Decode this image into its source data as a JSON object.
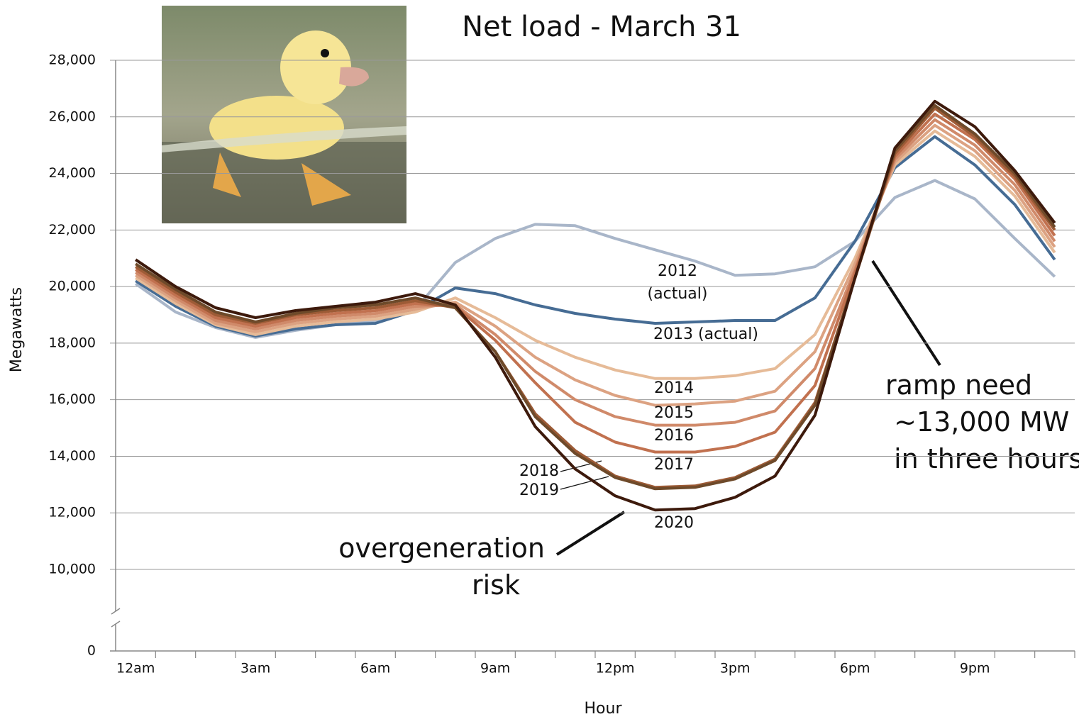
{
  "chart_data": {
    "type": "line",
    "title": "Net load - March 31",
    "x_label": "Hour",
    "y_label": "Megawatts",
    "categories": [
      "12am",
      null,
      null,
      "3am",
      null,
      null,
      "6am",
      null,
      null,
      "9am",
      null,
      null,
      "12pm",
      null,
      null,
      "3pm",
      null,
      null,
      "6pm",
      null,
      null,
      "9pm",
      null,
      null
    ],
    "ylim": [
      0,
      28000
    ],
    "axis_break": [
      0,
      10000
    ],
    "yticks": [
      0,
      {
        "value": 10000,
        "label": "10,000"
      },
      {
        "value": 12000,
        "label": "12,000"
      },
      {
        "value": 14000,
        "label": "14,000"
      },
      {
        "value": 16000,
        "label": "16,000"
      },
      {
        "value": 18000,
        "label": "18,000"
      },
      {
        "value": 20000,
        "label": "20,000"
      },
      {
        "value": 22000,
        "label": "22,000"
      },
      {
        "value": 24000,
        "label": "24,000"
      },
      {
        "value": 26000,
        "label": "26,000"
      },
      {
        "value": 28000,
        "label": "28,000"
      }
    ],
    "grid": true,
    "series": [
      {
        "name": "2012",
        "color": "#a9b6c9",
        "values": [
          20100,
          19100,
          18550,
          18200,
          18450,
          18650,
          18800,
          19200,
          20850,
          21700,
          22200,
          22150,
          21700,
          21300,
          20900,
          20400,
          20450,
          20700,
          21600,
          23150,
          23750,
          23100,
          21700,
          20350
        ]
      },
      {
        "name": "2013 (actual)",
        "color": "#466c94",
        "values": [
          20200,
          19300,
          18600,
          18250,
          18500,
          18650,
          18700,
          19150,
          19950,
          19750,
          19350,
          19050,
          18850,
          18700,
          18750,
          18800,
          18800,
          19600,
          21600,
          24200,
          25300,
          24300,
          22900,
          20950
        ]
      },
      {
        "name": "2014",
        "color": "#e6bb98",
        "values": [
          20300,
          19400,
          18650,
          18300,
          18600,
          18750,
          18850,
          19100,
          19600,
          18900,
          18100,
          17500,
          17050,
          16750,
          16750,
          16850,
          17100,
          18300,
          21000,
          24300,
          25500,
          24600,
          23200,
          21200
        ]
      },
      {
        "name": "2015",
        "color": "#dca282",
        "values": [
          20400,
          19500,
          18700,
          18400,
          18700,
          18850,
          18950,
          19200,
          19450,
          18600,
          17500,
          16700,
          16150,
          15800,
          15850,
          15950,
          16300,
          17700,
          20800,
          24400,
          25700,
          24800,
          23400,
          21400
        ]
      },
      {
        "name": "2016",
        "color": "#d08a6a",
        "values": [
          20500,
          19600,
          18800,
          18500,
          18800,
          18950,
          19050,
          19300,
          19350,
          18300,
          17000,
          16000,
          15400,
          15100,
          15100,
          15200,
          15600,
          17100,
          20600,
          24500,
          25900,
          25000,
          23600,
          21600
        ]
      },
      {
        "name": "2017",
        "color": "#c1714f",
        "values": [
          20600,
          19700,
          18900,
          18600,
          18900,
          19050,
          19150,
          19400,
          19300,
          18100,
          16600,
          15200,
          14500,
          14150,
          14150,
          14350,
          14850,
          16500,
          20500,
          24600,
          26100,
          25200,
          23800,
          21800
        ]
      },
      {
        "name": "2018",
        "color": "#9d5b36",
        "values": [
          20700,
          19800,
          19000,
          18700,
          19000,
          19150,
          19250,
          19500,
          19250,
          17700,
          15500,
          14200,
          13300,
          12900,
          12950,
          13250,
          13900,
          15900,
          20300,
          24700,
          26300,
          25300,
          23900,
          22000
        ]
      },
      {
        "name": "2019",
        "color": "#6e4a2a",
        "values": [
          20800,
          19900,
          19100,
          18750,
          19050,
          19250,
          19350,
          19600,
          19250,
          17700,
          15400,
          14100,
          13250,
          12850,
          12900,
          13200,
          13850,
          15800,
          20300,
          24800,
          26400,
          25400,
          24000,
          22100
        ]
      },
      {
        "name": "2020",
        "color": "#3d1a0c",
        "values": [
          20950,
          20000,
          19250,
          18900,
          19150,
          19300,
          19450,
          19750,
          19350,
          17500,
          15050,
          13550,
          12600,
          12100,
          12150,
          12550,
          13300,
          15450,
          20300,
          24900,
          26550,
          25650,
          24100,
          22250
        ]
      }
    ],
    "annotations": [
      "(actual)",
      "overgeneration risk",
      "ramp need ~13,000 MW in three hours"
    ]
  }
}
